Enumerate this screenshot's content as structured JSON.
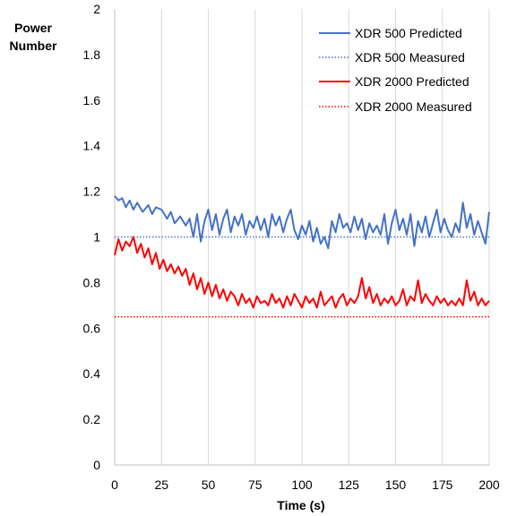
{
  "chart_data": {
    "type": "line",
    "title": "",
    "xlabel": "Time (s)",
    "ylabel_lines": [
      "Power",
      "Number"
    ],
    "xlim": [
      0,
      200
    ],
    "ylim": [
      0,
      2
    ],
    "xticks": [
      0,
      25,
      50,
      75,
      100,
      125,
      150,
      175,
      200
    ],
    "yticks": [
      0,
      0.2,
      0.4,
      0.6,
      0.8,
      1,
      1.2,
      1.4,
      1.6,
      1.8,
      2
    ],
    "ytick_labels": [
      "0",
      "0.2",
      "0.4",
      "0.6",
      "0.8",
      "1",
      "1.2",
      "1.4",
      "1.6",
      "1.8",
      "2"
    ],
    "grid": {
      "vertical": true,
      "horizontal": false
    },
    "legend_position": "top-right",
    "series": [
      {
        "name": "XDR 500 Predicted",
        "style": "solid",
        "color": "#4472C4",
        "x": [
          0,
          2,
          4,
          6,
          8,
          10,
          12,
          15,
          18,
          20,
          22,
          25,
          28,
          30,
          32,
          35,
          38,
          40,
          42,
          44,
          46,
          48,
          50,
          52,
          54,
          56,
          58,
          60,
          62,
          64,
          66,
          68,
          70,
          72,
          74,
          76,
          78,
          80,
          82,
          84,
          86,
          88,
          90,
          92,
          94,
          96,
          98,
          100,
          102,
          104,
          106,
          108,
          110,
          112,
          114,
          116,
          118,
          120,
          122,
          124,
          126,
          128,
          130,
          132,
          134,
          136,
          138,
          140,
          142,
          144,
          146,
          148,
          150,
          152,
          154,
          156,
          158,
          160,
          162,
          164,
          166,
          168,
          170,
          172,
          174,
          176,
          178,
          180,
          182,
          184,
          186,
          188,
          190,
          192,
          194,
          196,
          198,
          200
        ],
        "y": [
          1.18,
          1.16,
          1.17,
          1.13,
          1.16,
          1.12,
          1.15,
          1.11,
          1.14,
          1.1,
          1.13,
          1.12,
          1.08,
          1.11,
          1.06,
          1.09,
          1.05,
          1.08,
          1.0,
          1.1,
          0.98,
          1.07,
          1.12,
          1.03,
          1.1,
          1.01,
          1.08,
          1.12,
          1.02,
          1.09,
          1.05,
          1.1,
          1.01,
          1.07,
          1.04,
          1.09,
          1.03,
          1.08,
          1.0,
          1.1,
          1.05,
          1.09,
          1.02,
          1.08,
          1.12,
          1.03,
          0.99,
          1.05,
          1.01,
          1.07,
          0.98,
          1.04,
          0.97,
          1.0,
          0.95,
          1.07,
          1.02,
          1.1,
          1.04,
          1.06,
          1.02,
          1.09,
          1.03,
          1.08,
          0.99,
          1.06,
          1.02,
          1.05,
          1.01,
          1.1,
          0.97,
          1.06,
          1.12,
          1.03,
          1.08,
          1.01,
          1.1,
          0.96,
          1.07,
          1.02,
          1.09,
          1.0,
          1.06,
          1.12,
          1.02,
          1.08,
          1.03,
          1.0,
          1.06,
          1.02,
          1.15,
          1.04,
          1.1,
          1.01,
          1.07,
          1.02,
          0.97,
          1.11
        ]
      },
      {
        "name": "XDR 500 Measured",
        "style": "dotted",
        "color": "#4472C4",
        "x": [
          0,
          200
        ],
        "y": [
          1.0,
          1.0
        ]
      },
      {
        "name": "XDR 2000 Predicted",
        "style": "solid",
        "color": "#FF0000",
        "x": [
          0,
          2,
          4,
          6,
          8,
          10,
          12,
          14,
          16,
          18,
          20,
          22,
          24,
          26,
          28,
          30,
          32,
          34,
          36,
          38,
          40,
          42,
          44,
          46,
          48,
          50,
          52,
          54,
          56,
          58,
          60,
          62,
          64,
          66,
          68,
          70,
          72,
          74,
          76,
          78,
          80,
          82,
          84,
          86,
          88,
          90,
          92,
          94,
          96,
          98,
          100,
          102,
          104,
          106,
          108,
          110,
          112,
          114,
          116,
          118,
          120,
          122,
          124,
          126,
          128,
          130,
          132,
          134,
          136,
          138,
          140,
          142,
          144,
          146,
          148,
          150,
          152,
          154,
          156,
          158,
          160,
          162,
          164,
          166,
          168,
          170,
          172,
          174,
          176,
          178,
          180,
          182,
          184,
          186,
          188,
          190,
          192,
          194,
          196,
          198,
          200
        ],
        "y": [
          0.92,
          0.99,
          0.94,
          0.98,
          0.96,
          1.0,
          0.93,
          0.97,
          0.91,
          0.95,
          0.88,
          0.93,
          0.86,
          0.9,
          0.85,
          0.88,
          0.84,
          0.87,
          0.83,
          0.86,
          0.79,
          0.84,
          0.77,
          0.82,
          0.75,
          0.8,
          0.74,
          0.79,
          0.73,
          0.77,
          0.72,
          0.76,
          0.74,
          0.7,
          0.75,
          0.71,
          0.73,
          0.69,
          0.74,
          0.71,
          0.72,
          0.7,
          0.75,
          0.71,
          0.73,
          0.69,
          0.74,
          0.7,
          0.75,
          0.72,
          0.69,
          0.74,
          0.71,
          0.73,
          0.69,
          0.76,
          0.7,
          0.72,
          0.74,
          0.69,
          0.73,
          0.75,
          0.7,
          0.73,
          0.71,
          0.74,
          0.82,
          0.73,
          0.78,
          0.71,
          0.75,
          0.7,
          0.73,
          0.71,
          0.74,
          0.7,
          0.72,
          0.77,
          0.7,
          0.74,
          0.72,
          0.81,
          0.71,
          0.75,
          0.72,
          0.7,
          0.74,
          0.71,
          0.73,
          0.7,
          0.72,
          0.7,
          0.73,
          0.7,
          0.81,
          0.72,
          0.76,
          0.7,
          0.73,
          0.7,
          0.72
        ]
      },
      {
        "name": "XDR 2000 Measured",
        "style": "dotted",
        "color": "#FF0000",
        "x": [
          0,
          200
        ],
        "y": [
          0.65,
          0.65
        ]
      }
    ]
  }
}
